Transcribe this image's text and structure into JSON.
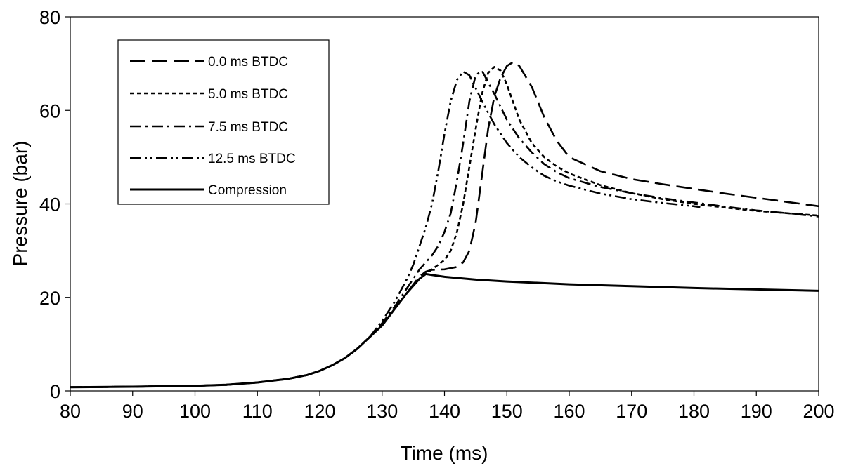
{
  "chart_data": {
    "type": "line",
    "title": "",
    "xlabel": "Time (ms)",
    "ylabel": "Pressure (bar)",
    "xlim": [
      80,
      200
    ],
    "ylim": [
      0,
      80
    ],
    "xticks": [
      80,
      90,
      100,
      110,
      120,
      130,
      140,
      150,
      160,
      170,
      180,
      190,
      200
    ],
    "yticks": [
      0,
      20,
      40,
      60,
      80
    ],
    "grid": false,
    "legend_position": "top-left",
    "series": [
      {
        "name": "0.0 ms BTDC",
        "dash": "long-dash",
        "x": [
          80,
          90,
          100,
          105,
          110,
          115,
          118,
          120,
          122,
          124,
          126,
          128,
          130,
          132,
          134,
          136,
          137,
          138,
          140,
          142,
          143,
          144,
          145,
          146,
          147,
          148,
          149,
          150,
          151,
          152,
          154,
          156,
          158,
          160,
          165,
          170,
          175,
          180,
          185,
          190,
          195,
          200
        ],
        "y": [
          0.8,
          0.9,
          1.1,
          1.3,
          1.8,
          2.6,
          3.4,
          4.3,
          5.5,
          7.0,
          9.0,
          11.5,
          14.0,
          17.5,
          21.0,
          24.5,
          25.5,
          25.9,
          26.0,
          26.5,
          27.5,
          30.0,
          36.0,
          46.0,
          56.0,
          63.0,
          67.0,
          69.5,
          70.3,
          69.5,
          65.0,
          58.5,
          53.5,
          50.0,
          47.0,
          45.3,
          44.2,
          43.2,
          42.2,
          41.3,
          40.4,
          39.5
        ]
      },
      {
        "name": "5.0 ms BTDC",
        "dash": "short-dash",
        "x": [
          80,
          90,
          100,
          105,
          110,
          115,
          118,
          120,
          122,
          124,
          126,
          128,
          130,
          132,
          134,
          136,
          138,
          140,
          141,
          142,
          143,
          144,
          145,
          146,
          147,
          148,
          149,
          150,
          152,
          154,
          156,
          158,
          160,
          165,
          170,
          175,
          180,
          185,
          190,
          195,
          200
        ],
        "y": [
          0.8,
          0.9,
          1.1,
          1.3,
          1.8,
          2.6,
          3.4,
          4.3,
          5.5,
          7.0,
          9.0,
          11.5,
          14.0,
          17.5,
          21.0,
          24.0,
          26.0,
          28.0,
          30.0,
          34.0,
          40.0,
          48.0,
          56.0,
          63.5,
          68.0,
          69.3,
          68.5,
          65.5,
          58.0,
          53.0,
          50.0,
          48.0,
          46.5,
          44.0,
          42.3,
          41.0,
          40.0,
          39.2,
          38.5,
          38.0,
          37.5
        ]
      },
      {
        "name": "7.5 ms BTDC",
        "dash": "dash-dot",
        "x": [
          80,
          90,
          100,
          105,
          110,
          115,
          118,
          120,
          122,
          124,
          126,
          128,
          130,
          132,
          134,
          136,
          138,
          139,
          140,
          141,
          142,
          143,
          144,
          145,
          146,
          148,
          150,
          152,
          154,
          156,
          158,
          160,
          165,
          170,
          175,
          180,
          185,
          190,
          195,
          200
        ],
        "y": [
          0.8,
          0.9,
          1.1,
          1.3,
          1.8,
          2.6,
          3.4,
          4.3,
          5.5,
          7.0,
          9.0,
          11.5,
          14.5,
          18.0,
          22.0,
          26.0,
          29.0,
          31.0,
          34.0,
          38.0,
          45.0,
          53.0,
          62.0,
          67.5,
          68.5,
          63.5,
          58.0,
          54.0,
          51.0,
          48.5,
          46.8,
          45.5,
          43.6,
          42.3,
          41.2,
          40.3,
          39.4,
          38.6,
          38.0,
          37.3
        ]
      },
      {
        "name": "12.5 ms BTDC",
        "dash": "dash-dot-dot",
        "x": [
          80,
          90,
          100,
          105,
          110,
          115,
          118,
          120,
          122,
          124,
          126,
          128,
          130,
          132,
          134,
          135,
          136,
          137,
          138,
          139,
          140,
          141,
          142,
          143,
          144,
          146,
          148,
          150,
          152,
          154,
          156,
          158,
          160,
          165,
          170,
          175,
          180,
          181
        ],
        "y": [
          0.8,
          0.9,
          1.1,
          1.3,
          1.8,
          2.6,
          3.4,
          4.3,
          5.5,
          7.0,
          9.0,
          11.5,
          15.0,
          19.0,
          24.0,
          27.0,
          31.0,
          35.0,
          40.0,
          47.0,
          55.0,
          62.0,
          66.5,
          68.3,
          67.5,
          62.0,
          57.0,
          53.0,
          50.0,
          47.8,
          46.0,
          44.8,
          43.9,
          42.2,
          41.0,
          40.2,
          39.5,
          39.3
        ]
      },
      {
        "name": "Compression",
        "dash": "solid",
        "x": [
          80,
          90,
          100,
          105,
          110,
          115,
          118,
          120,
          122,
          124,
          126,
          128,
          130,
          132,
          134,
          136,
          137,
          138,
          140,
          145,
          150,
          160,
          170,
          180,
          190,
          200
        ],
        "y": [
          0.8,
          0.9,
          1.1,
          1.3,
          1.8,
          2.6,
          3.4,
          4.3,
          5.5,
          7.0,
          9.0,
          11.5,
          14.0,
          17.5,
          21.0,
          24.0,
          25.0,
          24.8,
          24.4,
          23.8,
          23.4,
          22.8,
          22.4,
          22.0,
          21.7,
          21.4
        ]
      }
    ]
  }
}
